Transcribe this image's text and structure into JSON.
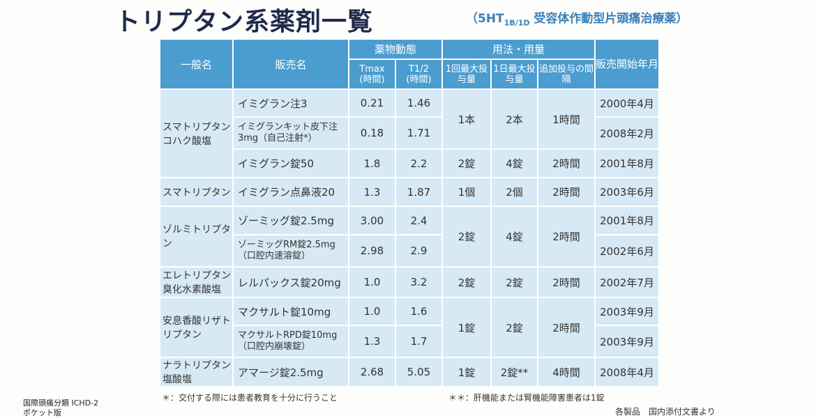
{
  "title": "トリプタン系薬剤一覧",
  "subtitle_pre": "（5HT",
  "subtitle_sub": "1B/1D",
  "subtitle_post": " 受容体作動型片頭痛治療薬）",
  "headers": {
    "generic": "一般名",
    "brand": "販売名",
    "pk": "薬物動態",
    "usage": "用法・用量",
    "launch": "販売開始年月",
    "tmax": "Tmax",
    "tmax_unit": "(時間)",
    "thalf": "T1/2",
    "thalf_unit": "(時間)",
    "max1": "1回最大投与量",
    "maxday": "1日最大投与量",
    "interval": "追加投与の間隔"
  },
  "rows": [
    {
      "generic": "スマトリプタンコハク酸塩",
      "brand": "イミグラン注3",
      "tmax": "0.21",
      "thalf": "1.46",
      "max1": "1本",
      "maxday": "2本",
      "interval": "1時間",
      "launch": "2000年4月"
    },
    {
      "brand": "イミグランキット皮下注3mg（自己注射*）",
      "tmax": "0.18",
      "thalf": "1.71",
      "launch": "2008年2月"
    },
    {
      "brand": "イミグラン錠50",
      "tmax": "1.8",
      "thalf": "2.2",
      "max1": "2錠",
      "maxday": "4錠",
      "interval": "2時間",
      "launch": "2001年8月"
    },
    {
      "generic": "スマトリプタン",
      "brand": "イミグラン点鼻液20",
      "tmax": "1.3",
      "thalf": "1.87",
      "max1": "1個",
      "maxday": "2個",
      "interval": "2時間",
      "launch": "2003年6月"
    },
    {
      "generic": "ゾルミトリプタン",
      "brand": "ゾーミッグ錠2.5mg",
      "tmax": "3.00",
      "thalf": "2.4",
      "max1": "2錠",
      "maxday": "4錠",
      "interval": "2時間",
      "launch": "2001年8月"
    },
    {
      "brand": "ゾーミッグRM錠2.5mg（口腔内速溶錠）",
      "tmax": "2.98",
      "thalf": "2.9",
      "launch": "2002年6月"
    },
    {
      "generic": "エレトリプタン臭化水素酸塩",
      "brand": "レルパックス錠20mg",
      "tmax": "1.0",
      "thalf": "3.2",
      "max1": "2錠",
      "maxday": "2錠",
      "interval": "2時間",
      "launch": "2002年7月"
    },
    {
      "generic": "安息香酸リザトリプタン",
      "brand": "マクサルト錠10mg",
      "tmax": "1.0",
      "thalf": "1.6",
      "max1": "1錠",
      "maxday": "2錠",
      "interval": "2時間",
      "launch": "2003年9月"
    },
    {
      "brand": "マクサルトRPD錠10mg（口腔内崩壊錠）",
      "tmax": "1.3",
      "thalf": "1.7",
      "launch": "2003年9月"
    },
    {
      "generic": "ナラトリプタン塩酸塩",
      "brand": "アマージ錠2.5mg",
      "tmax": "2.68",
      "thalf": "5.05",
      "max1": "1錠",
      "maxday": "2錠**",
      "interval": "4時間",
      "launch": "2008年4月"
    }
  ],
  "note1": "＊：交付する際には患者教育を十分に行うこと",
  "note2": "＊＊：肝機能または腎機能障害患者は1錠",
  "source": "各製品　国内添付文書より",
  "book_line1": "国際頭痛分類 ICHD-2",
  "book_line2": "ポケット版"
}
